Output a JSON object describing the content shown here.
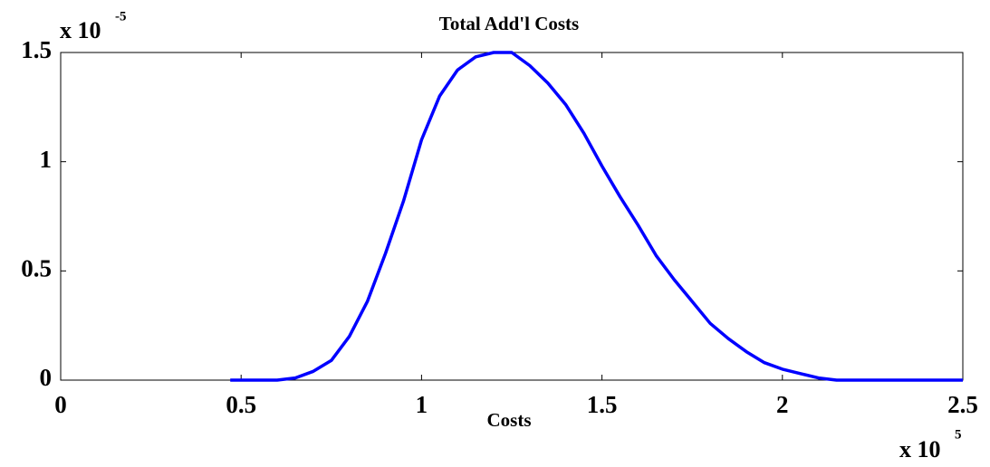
{
  "chart_data": {
    "type": "line",
    "title": "Total Add'l Costs",
    "x_label": "Costs",
    "x_multiplier": {
      "base": "x 10",
      "exponent": "5"
    },
    "y_multiplier": {
      "base": "x 10",
      "exponent": "-5"
    },
    "color": "#0000ff",
    "x": [
      0.47,
      0.6,
      0.65,
      0.7,
      0.75,
      0.8,
      0.85,
      0.9,
      0.95,
      1.0,
      1.05,
      1.1,
      1.15,
      1.2,
      1.25,
      1.3,
      1.35,
      1.4,
      1.45,
      1.5,
      1.55,
      1.6,
      1.65,
      1.7,
      1.75,
      1.8,
      1.85,
      1.9,
      1.95,
      2.0,
      2.05,
      2.1,
      2.15,
      2.2,
      2.5
    ],
    "values": [
      0,
      0,
      0.01,
      0.04,
      0.09,
      0.2,
      0.36,
      0.58,
      0.82,
      1.1,
      1.3,
      1.42,
      1.48,
      1.5,
      1.5,
      1.44,
      1.36,
      1.26,
      1.13,
      0.98,
      0.84,
      0.71,
      0.57,
      0.46,
      0.36,
      0.26,
      0.19,
      0.13,
      0.08,
      0.05,
      0.03,
      0.01,
      0,
      0,
      0
    ],
    "xlim": [
      0,
      2.5
    ],
    "xticks": [
      0,
      0.5,
      1,
      1.5,
      2,
      2.5
    ],
    "ylim": [
      0,
      1.5
    ],
    "yticks": [
      0,
      0.5,
      1,
      1.5
    ],
    "grid": false
  }
}
